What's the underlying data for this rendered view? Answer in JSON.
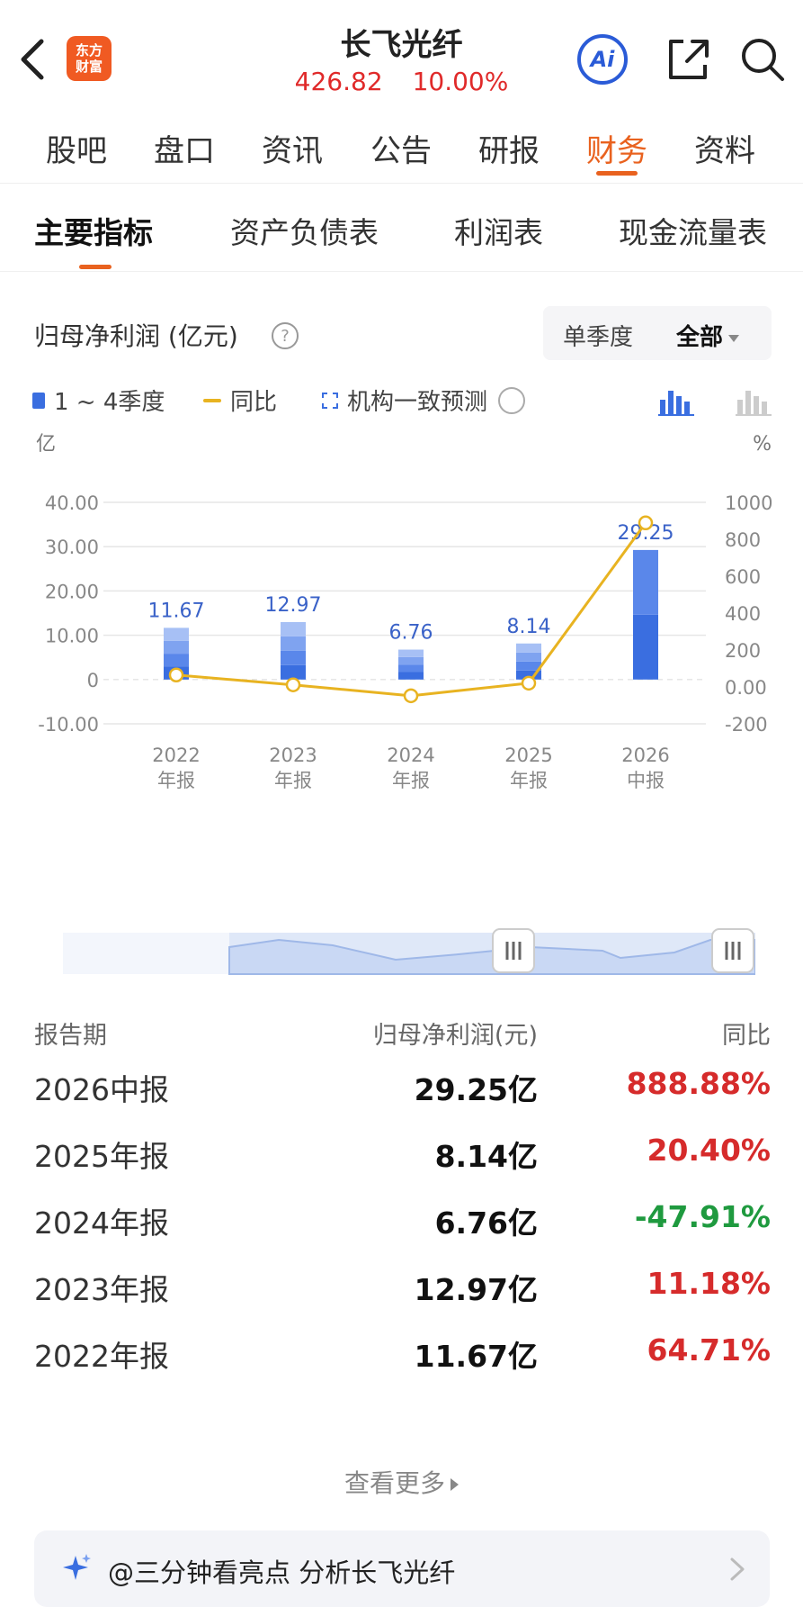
{
  "header": {
    "logo_line1": "东方",
    "logo_line2": "财富",
    "stock_name": "长飞光纤",
    "price": "426.82",
    "change_pct": "10.00%",
    "ai_label": "Ai"
  },
  "tabs": [
    {
      "label": "股吧"
    },
    {
      "label": "盘口"
    },
    {
      "label": "资讯"
    },
    {
      "label": "公告"
    },
    {
      "label": "研报"
    },
    {
      "label": "财务",
      "active": true
    },
    {
      "label": "资料"
    }
  ],
  "subtabs": [
    {
      "label": "主要指标",
      "active": true
    },
    {
      "label": "资产负债表"
    },
    {
      "label": "利润表"
    },
    {
      "label": "现金流量表"
    }
  ],
  "section": {
    "title": "归母净利润 (亿元)",
    "help": "?",
    "period_quarter": "单季度",
    "period_all": "全部"
  },
  "legend": {
    "bars": "1 ~ 4季度",
    "line": "同比",
    "forecast": "机构一致预测"
  },
  "colors": {
    "accent": "#e9621f",
    "bar": "#3a6ee0",
    "line": "#e8b321",
    "up": "#d62b2b",
    "down": "#1f9a3f"
  },
  "chart_data": {
    "type": "bar",
    "left_unit": "亿",
    "right_unit": "%",
    "categories": [
      "2022\n年报",
      "2023\n年报",
      "2024\n年报",
      "2025\n年报",
      "2026\n中报"
    ],
    "category_years": [
      "2022",
      "2023",
      "2024",
      "2025",
      "2026"
    ],
    "category_kinds": [
      "年报",
      "年报",
      "年报",
      "年报",
      "中报"
    ],
    "series": [
      {
        "name": "1 ~ 4季度",
        "axis": "left",
        "values": [
          11.67,
          12.97,
          6.76,
          8.14,
          29.25
        ]
      },
      {
        "name": "同比",
        "axis": "right",
        "type": "line",
        "values": [
          64.71,
          11.18,
          -47.91,
          20.4,
          888.88
        ]
      }
    ],
    "bar_labels": [
      "11.67",
      "12.97",
      "6.76",
      "8.14",
      "29.25"
    ],
    "ylim_left": [
      -10,
      40
    ],
    "ylim_right": [
      -200,
      1000
    ],
    "left_ticks": [
      "40.00",
      "30.00",
      "20.00",
      "10.00",
      "0",
      "-10.00"
    ],
    "right_ticks": [
      "1000",
      "800",
      "600",
      "400",
      "200",
      "0.00",
      "-200"
    ],
    "grid": true
  },
  "table": {
    "headers": {
      "period": "报告期",
      "value": "归母净利润(元)",
      "yoy": "同比"
    },
    "rows": [
      {
        "period": "2026中报",
        "value": "29.25亿",
        "yoy": "888.88%",
        "dir": "up"
      },
      {
        "period": "2025年报",
        "value": "8.14亿",
        "yoy": "20.40%",
        "dir": "up"
      },
      {
        "period": "2024年报",
        "value": "6.76亿",
        "yoy": "-47.91%",
        "dir": "down"
      },
      {
        "period": "2023年报",
        "value": "12.97亿",
        "yoy": "11.18%",
        "dir": "up"
      },
      {
        "period": "2022年报",
        "value": "11.67亿",
        "yoy": "64.71%",
        "dir": "up"
      }
    ]
  },
  "more": "查看更多",
  "ai_banner": "@三分钟看亮点 分析长飞光纤"
}
